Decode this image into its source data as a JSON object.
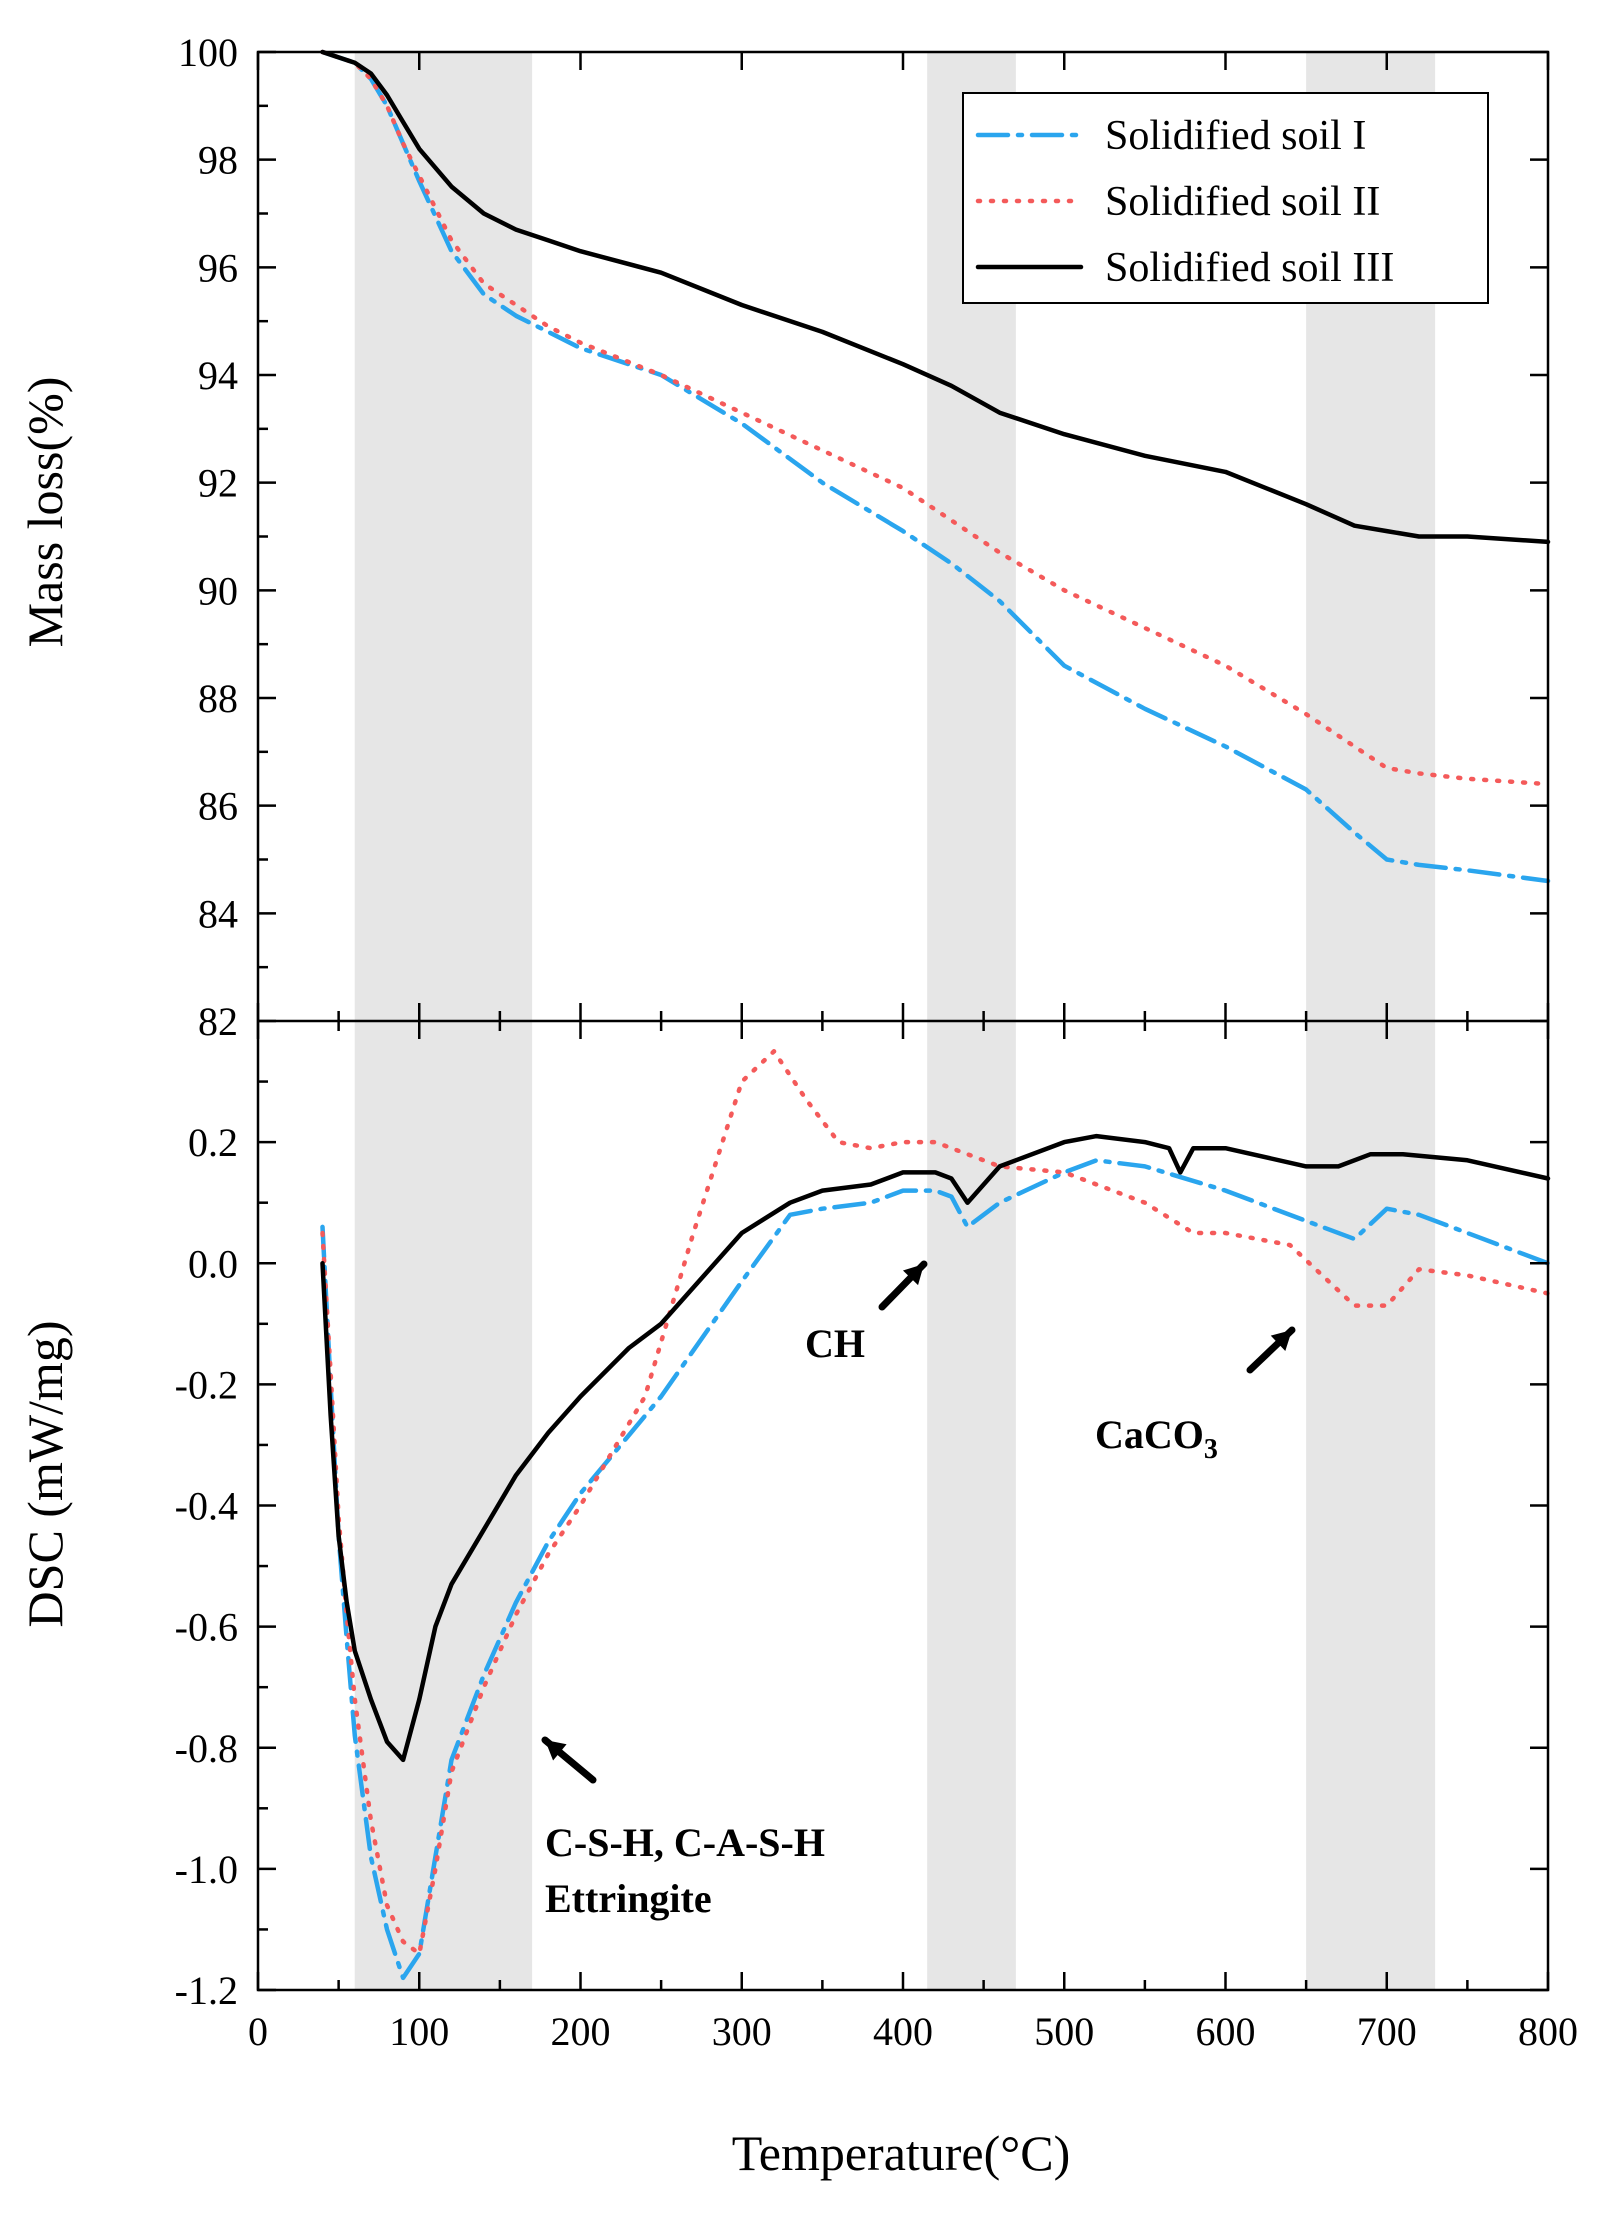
{
  "colors": {
    "series_1": "#2aa5ee",
    "series_2": "#f45a5a",
    "series_3": "#000000",
    "band": "#e6e6e6"
  },
  "chart_data": [
    {
      "type": "line",
      "panel": "top",
      "xlabel": "Temperature(°C)",
      "ylabel": "Mass loss(%)",
      "xlim": [
        0,
        800
      ],
      "ylim": [
        82,
        100
      ],
      "yticks": [
        82,
        84,
        86,
        88,
        90,
        92,
        94,
        96,
        98,
        100
      ],
      "ytick_labels": [
        "82",
        "84",
        "86",
        "88",
        "90",
        "92",
        "94",
        "96",
        "98",
        "100"
      ],
      "legend": "top-right",
      "shaded_ranges": [
        [
          60,
          170
        ],
        [
          415,
          470
        ],
        [
          650,
          730
        ]
      ],
      "series": [
        {
          "name": "Solidified soil I",
          "style": "dashdot",
          "x": [
            40,
            50,
            60,
            70,
            80,
            90,
            100,
            120,
            140,
            160,
            180,
            200,
            250,
            300,
            350,
            400,
            430,
            460,
            500,
            550,
            600,
            650,
            680,
            700,
            720,
            750,
            800
          ],
          "y": [
            100,
            99.9,
            99.8,
            99.5,
            99,
            98.3,
            97.6,
            96.3,
            95.5,
            95.1,
            94.8,
            94.5,
            94.0,
            93.1,
            92.0,
            91.1,
            90.5,
            89.8,
            88.6,
            87.8,
            87.1,
            86.3,
            85.5,
            85.0,
            84.9,
            84.8,
            84.6
          ]
        },
        {
          "name": "Solidified soil II",
          "style": "dotted",
          "x": [
            40,
            50,
            60,
            70,
            80,
            90,
            100,
            120,
            140,
            160,
            180,
            200,
            250,
            300,
            350,
            400,
            430,
            460,
            500,
            550,
            600,
            650,
            680,
            700,
            720,
            750,
            800
          ],
          "y": [
            100,
            99.9,
            99.8,
            99.5,
            99,
            98.3,
            97.7,
            96.5,
            95.7,
            95.3,
            94.9,
            94.6,
            94.0,
            93.3,
            92.6,
            91.9,
            91.3,
            90.7,
            90.0,
            89.3,
            88.6,
            87.7,
            87.1,
            86.7,
            86.6,
            86.5,
            86.4
          ]
        },
        {
          "name": "Solidified soil III",
          "style": "solid",
          "x": [
            40,
            50,
            60,
            70,
            80,
            90,
            100,
            120,
            140,
            160,
            180,
            200,
            250,
            300,
            350,
            400,
            430,
            460,
            500,
            550,
            600,
            650,
            680,
            700,
            720,
            750,
            800
          ],
          "y": [
            100,
            99.9,
            99.8,
            99.6,
            99.2,
            98.7,
            98.2,
            97.5,
            97.0,
            96.7,
            96.5,
            96.3,
            95.9,
            95.3,
            94.8,
            94.2,
            93.8,
            93.3,
            92.9,
            92.5,
            92.2,
            91.6,
            91.2,
            91.1,
            91.0,
            91.0,
            90.9
          ]
        }
      ]
    },
    {
      "type": "line",
      "panel": "bottom",
      "xlabel": "Temperature(°C)",
      "ylabel": "DSC (mW/mg)",
      "xlim": [
        0,
        800
      ],
      "ylim": [
        -1.2,
        0.4
      ],
      "xticks": [
        0,
        100,
        200,
        300,
        400,
        500,
        600,
        700,
        800
      ],
      "xtick_labels": [
        "0",
        "100",
        "200",
        "300",
        "400",
        "500",
        "600",
        "700",
        "800"
      ],
      "yticks": [
        -1.2,
        -1.0,
        -0.8,
        -0.6,
        -0.4,
        -0.2,
        0.0,
        0.2
      ],
      "ytick_labels": [
        "-1.2",
        "-1.0",
        "-0.8",
        "-0.6",
        "-0.4",
        "-0.2",
        "0.0",
        "0.2"
      ],
      "shaded_ranges": [
        [
          60,
          170
        ],
        [
          415,
          470
        ],
        [
          650,
          730
        ]
      ],
      "annotations": [
        {
          "text": "C-S-H, C-A-S-H",
          "x": 178,
          "y": -1.05
        },
        {
          "text": "Ettringite",
          "x": 178,
          "y": -1.12
        },
        {
          "text": "CH",
          "x": 340,
          "y": -0.13
        },
        {
          "text": "CaCO",
          "sub": "3",
          "x": 520,
          "y": -0.29
        }
      ],
      "series": [
        {
          "name": "Solidified soil I",
          "style": "dashdot",
          "x": [
            40,
            45,
            50,
            55,
            60,
            70,
            80,
            90,
            100,
            110,
            120,
            140,
            160,
            180,
            200,
            250,
            300,
            330,
            350,
            380,
            400,
            420,
            430,
            440,
            460,
            500,
            520,
            550,
            600,
            650,
            680,
            700,
            720,
            750,
            800
          ],
          "y": [
            0.06,
            -0.2,
            -0.45,
            -0.62,
            -0.78,
            -0.98,
            -1.1,
            -1.18,
            -1.14,
            -0.98,
            -0.82,
            -0.68,
            -0.56,
            -0.46,
            -0.38,
            -0.22,
            -0.03,
            0.08,
            0.09,
            0.1,
            0.12,
            0.12,
            0.11,
            0.06,
            0.1,
            0.15,
            0.17,
            0.16,
            0.12,
            0.07,
            0.04,
            0.09,
            0.08,
            0.05,
            0.0
          ]
        },
        {
          "name": "Solidified soil II",
          "style": "dotted",
          "x": [
            40,
            45,
            50,
            55,
            60,
            70,
            80,
            90,
            100,
            110,
            120,
            140,
            160,
            180,
            200,
            240,
            270,
            300,
            320,
            340,
            360,
            380,
            400,
            420,
            440,
            460,
            500,
            550,
            580,
            600,
            640,
            660,
            680,
            700,
            710,
            720,
            750,
            800
          ],
          "y": [
            0.05,
            -0.18,
            -0.42,
            -0.58,
            -0.72,
            -0.92,
            -1.06,
            -1.12,
            -1.14,
            -1.0,
            -0.84,
            -0.7,
            -0.58,
            -0.48,
            -0.4,
            -0.22,
            0.05,
            0.3,
            0.35,
            0.27,
            0.2,
            0.19,
            0.2,
            0.2,
            0.18,
            0.16,
            0.15,
            0.1,
            0.05,
            0.05,
            0.03,
            -0.02,
            -0.07,
            -0.07,
            -0.04,
            -0.01,
            -0.02,
            -0.05
          ]
        },
        {
          "name": "Solidified soil III",
          "style": "solid",
          "x": [
            40,
            45,
            50,
            55,
            60,
            70,
            80,
            90,
            100,
            110,
            120,
            140,
            160,
            180,
            200,
            230,
            250,
            300,
            330,
            350,
            380,
            400,
            420,
            430,
            440,
            460,
            500,
            520,
            550,
            565,
            572,
            580,
            600,
            650,
            670,
            690,
            710,
            750,
            800
          ],
          "y": [
            0.0,
            -0.25,
            -0.45,
            -0.56,
            -0.64,
            -0.72,
            -0.79,
            -0.82,
            -0.72,
            -0.6,
            -0.53,
            -0.44,
            -0.35,
            -0.28,
            -0.22,
            -0.14,
            -0.1,
            0.05,
            0.1,
            0.12,
            0.13,
            0.15,
            0.15,
            0.14,
            0.1,
            0.16,
            0.2,
            0.21,
            0.2,
            0.19,
            0.15,
            0.19,
            0.19,
            0.16,
            0.16,
            0.18,
            0.18,
            0.17,
            0.14
          ]
        }
      ]
    }
  ]
}
